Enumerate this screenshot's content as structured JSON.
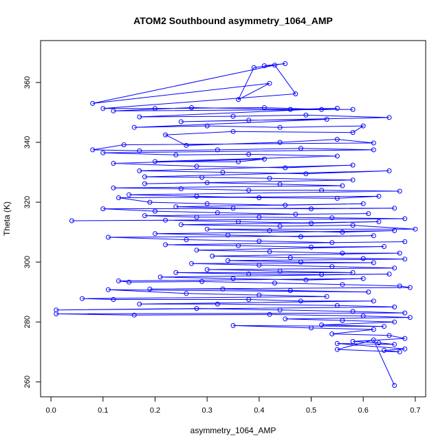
{
  "chart_data": {
    "type": "line",
    "title": "ATOM2 Southbound asymmetry_1064_AMP",
    "xlabel": "asymmetry_1064_AMP",
    "ylabel": "Theta (K)",
    "xlim": [
      -0.02,
      0.72
    ],
    "ylim": [
      255,
      374
    ],
    "x_ticks": [
      0.0,
      0.1,
      0.2,
      0.3,
      0.4,
      0.5,
      0.6,
      0.7
    ],
    "x_tick_labels": [
      "0.0",
      "0.1",
      "0.2",
      "0.3",
      "0.4",
      "0.5",
      "0.6",
      "0.7"
    ],
    "y_ticks": [
      260,
      280,
      300,
      320,
      340,
      360
    ],
    "y_tick_labels": [
      "260",
      "280",
      "300",
      "320",
      "340",
      "360"
    ],
    "markers": "open-circle",
    "grid": false,
    "colors": {
      "series": "#0000ff",
      "frame": "#000000"
    },
    "series": [
      {
        "values": [
          [
            0.41,
            365.6
          ],
          [
            0.45,
            366.3
          ],
          [
            0.39,
            365.0
          ],
          [
            0.36,
            354.3
          ],
          [
            0.42,
            359.7
          ],
          [
            0.08,
            353.0
          ],
          [
            0.43,
            365.8
          ],
          [
            0.47,
            356.2
          ],
          [
            0.1,
            351.3
          ],
          [
            0.2,
            351.3
          ],
          [
            0.41,
            351.6
          ],
          [
            0.52,
            351.0
          ],
          [
            0.58,
            351.0
          ],
          [
            0.12,
            350.5
          ],
          [
            0.27,
            351.6
          ],
          [
            0.46,
            351.0
          ],
          [
            0.55,
            351.4
          ],
          [
            0.17,
            348.5
          ],
          [
            0.35,
            348.7
          ],
          [
            0.49,
            349.1
          ],
          [
            0.65,
            348.3
          ],
          [
            0.25,
            346.9
          ],
          [
            0.38,
            347.4
          ],
          [
            0.53,
            347.7
          ],
          [
            0.16,
            345.0
          ],
          [
            0.3,
            345.5
          ],
          [
            0.44,
            345.0
          ],
          [
            0.6,
            345.5
          ],
          [
            0.58,
            343.3
          ],
          [
            0.35,
            343.6
          ],
          [
            0.22,
            342.5
          ],
          [
            0.26,
            339.0
          ],
          [
            0.44,
            340.0
          ],
          [
            0.55,
            341.0
          ],
          [
            0.62,
            339.8
          ],
          [
            0.14,
            339.2
          ],
          [
            0.08,
            337.5
          ],
          [
            0.17,
            337.2
          ],
          [
            0.32,
            337.5
          ],
          [
            0.48,
            338.0
          ],
          [
            0.62,
            337.5
          ],
          [
            0.1,
            336.5
          ],
          [
            0.24,
            335.8
          ],
          [
            0.38,
            336.0
          ],
          [
            0.55,
            335.4
          ],
          [
            0.2,
            333.6
          ],
          [
            0.36,
            333.5
          ],
          [
            0.41,
            334.4
          ],
          [
            0.12,
            333.0
          ],
          [
            0.28,
            332.0
          ],
          [
            0.45,
            331.5
          ],
          [
            0.58,
            332.4
          ],
          [
            0.17,
            330.5
          ],
          [
            0.33,
            330.0
          ],
          [
            0.49,
            329.5
          ],
          [
            0.65,
            330.5
          ],
          [
            0.18,
            328.5
          ],
          [
            0.29,
            328.3
          ],
          [
            0.42,
            328.0
          ],
          [
            0.58,
            327.4
          ],
          [
            0.18,
            326.2
          ],
          [
            0.3,
            326.5
          ],
          [
            0.44,
            326.0
          ],
          [
            0.56,
            325.5
          ],
          [
            0.12,
            324.8
          ],
          [
            0.25,
            324.5
          ],
          [
            0.38,
            324.0
          ],
          [
            0.52,
            324.0
          ],
          [
            0.67,
            323.7
          ],
          [
            0.15,
            322.5
          ],
          [
            0.28,
            322.0
          ],
          [
            0.4,
            321.5
          ],
          [
            0.55,
            321.3
          ],
          [
            0.63,
            322.0
          ],
          [
            0.13,
            321.5
          ],
          [
            0.19,
            320.0
          ],
          [
            0.3,
            319.5
          ],
          [
            0.45,
            319.0
          ],
          [
            0.6,
            319.5
          ],
          [
            0.24,
            318.5
          ],
          [
            0.35,
            318.0
          ],
          [
            0.5,
            317.8
          ],
          [
            0.66,
            318.0
          ],
          [
            0.1,
            317.8
          ],
          [
            0.2,
            317.0
          ],
          [
            0.32,
            316.5
          ],
          [
            0.47,
            316.0
          ],
          [
            0.61,
            316.2
          ],
          [
            0.18,
            315.5
          ],
          [
            0.28,
            315.0
          ],
          [
            0.4,
            315.0
          ],
          [
            0.54,
            314.8
          ],
          [
            0.68,
            314.5
          ],
          [
            0.04,
            313.8
          ],
          [
            0.22,
            314.0
          ],
          [
            0.36,
            313.5
          ],
          [
            0.5,
            313.0
          ],
          [
            0.63,
            313.5
          ],
          [
            0.25,
            312.5
          ],
          [
            0.44,
            312.0
          ],
          [
            0.58,
            312.3
          ],
          [
            0.7,
            311.0
          ],
          [
            0.3,
            311.0
          ],
          [
            0.42,
            310.5
          ],
          [
            0.56,
            310.0
          ],
          [
            0.66,
            310.5
          ],
          [
            0.2,
            309.5
          ],
          [
            0.34,
            309.0
          ],
          [
            0.48,
            308.5
          ],
          [
            0.62,
            308.8
          ],
          [
            0.11,
            308.3
          ],
          [
            0.26,
            307.5
          ],
          [
            0.4,
            307.0
          ],
          [
            0.54,
            306.5
          ],
          [
            0.68,
            306.8
          ],
          [
            0.22,
            305.8
          ],
          [
            0.36,
            305.5
          ],
          [
            0.5,
            305.0
          ],
          [
            0.64,
            305.2
          ],
          [
            0.28,
            304.0
          ],
          [
            0.42,
            303.5
          ],
          [
            0.56,
            303.0
          ],
          [
            0.67,
            303.0
          ],
          [
            0.31,
            302.0
          ],
          [
            0.46,
            301.5
          ],
          [
            0.6,
            301.2
          ],
          [
            0.68,
            301.0
          ],
          [
            0.34,
            300.5
          ],
          [
            0.48,
            300.0
          ],
          [
            0.62,
            299.8
          ],
          [
            0.27,
            299.5
          ],
          [
            0.4,
            299.0
          ],
          [
            0.54,
            298.5
          ],
          [
            0.66,
            298.0
          ],
          [
            0.3,
            297.5
          ],
          [
            0.44,
            297.0
          ],
          [
            0.58,
            296.5
          ],
          [
            0.24,
            296.5
          ],
          [
            0.38,
            296.0
          ],
          [
            0.52,
            295.8
          ],
          [
            0.65,
            296.0
          ],
          [
            0.21,
            295.0
          ],
          [
            0.35,
            294.5
          ],
          [
            0.49,
            294.0
          ],
          [
            0.6,
            294.5
          ],
          [
            0.13,
            293.7
          ],
          [
            0.15,
            293.3
          ],
          [
            0.29,
            293.5
          ],
          [
            0.43,
            293.0
          ],
          [
            0.56,
            292.5
          ],
          [
            0.67,
            292.0
          ],
          [
            0.69,
            291.5
          ],
          [
            0.19,
            291.0
          ],
          [
            0.33,
            291.0
          ],
          [
            0.46,
            290.5
          ],
          [
            0.61,
            290.0
          ],
          [
            0.11,
            290.8
          ],
          [
            0.26,
            289.5
          ],
          [
            0.4,
            289.0
          ],
          [
            0.53,
            288.5
          ],
          [
            0.06,
            287.8
          ],
          [
            0.12,
            287.5
          ],
          [
            0.38,
            287.5
          ],
          [
            0.48,
            287.0
          ],
          [
            0.62,
            287.0
          ],
          [
            0.17,
            286.0
          ],
          [
            0.32,
            286.0
          ],
          [
            0.55,
            285.5
          ],
          [
            0.66,
            285.0
          ],
          [
            0.01,
            284.0
          ],
          [
            0.28,
            284.5
          ],
          [
            0.44,
            284.0
          ],
          [
            0.58,
            283.5
          ],
          [
            0.68,
            283.0
          ],
          [
            0.01,
            282.7
          ],
          [
            0.16,
            282.3
          ],
          [
            0.42,
            282.5
          ],
          [
            0.6,
            282.0
          ],
          [
            0.69,
            281.5
          ],
          [
            0.45,
            281.0
          ],
          [
            0.56,
            280.5
          ],
          [
            0.66,
            280.0
          ],
          [
            0.52,
            279.0
          ],
          [
            0.64,
            278.5
          ],
          [
            0.35,
            278.8
          ],
          [
            0.5,
            278.0
          ],
          [
            0.62,
            277.5
          ],
          [
            0.54,
            276.0
          ],
          [
            0.65,
            275.5
          ],
          [
            0.68,
            274.5
          ],
          [
            0.58,
            273.5
          ],
          [
            0.63,
            273.0
          ],
          [
            0.66,
            272.5
          ],
          [
            0.55,
            272.8
          ],
          [
            0.68,
            271.0
          ],
          [
            0.64,
            270.5
          ],
          [
            0.67,
            270.0
          ],
          [
            0.55,
            270.8
          ],
          [
            0.62,
            274.0
          ],
          [
            0.66,
            258.8
          ]
        ]
      }
    ]
  }
}
